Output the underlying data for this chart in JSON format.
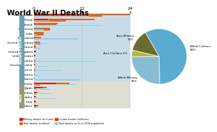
{
  "title": "World War II Deaths",
  "countries": [
    "Soviet Union",
    "China",
    "Poland",
    "Indonesia",
    "India",
    "Yugoslavia",
    "French Indochina",
    "France",
    "United Kingdom",
    "United States",
    "Lithuania",
    "Czechoslovakia",
    "Greece",
    "Burma",
    "Latvia",
    "Germany",
    "Japan",
    "Romania",
    "Hungary",
    "Italy",
    "Other"
  ],
  "allied_axis": [
    "Allied",
    "Allied",
    "Allied",
    "Allied",
    "Allied",
    "Allied",
    "Allied",
    "Allied",
    "Allied",
    "Allied",
    "Allied",
    "Allied",
    "Allied",
    "Allied",
    "Allied",
    "Axis",
    "Axis",
    "Axis",
    "Axis",
    "Axis",
    "Axis"
  ],
  "military_deaths": [
    8.7,
    3.5,
    0.24,
    0.0,
    0.09,
    0.3,
    0.0,
    0.21,
    0.38,
    0.42,
    0.03,
    0.25,
    0.02,
    0.02,
    0.03,
    5.5,
    2.1,
    0.3,
    0.3,
    0.3,
    0.5
  ],
  "total_deaths": [
    26.6,
    15.0,
    5.8,
    4.0,
    2.5,
    1.7,
    1.5,
    0.6,
    0.45,
    0.42,
    0.35,
    0.34,
    0.3,
    0.25,
    0.25,
    8.8,
    3.1,
    0.8,
    0.56,
    0.46,
    1.0
  ],
  "civilian_deaths": [
    17.0,
    8.0,
    5.5,
    4.0,
    2.4,
    1.4,
    1.5,
    0.35,
    0.07,
    0.0,
    0.32,
    0.09,
    0.28,
    0.23,
    0.22,
    1.5,
    0.5,
    0.5,
    0.26,
    0.15,
    0.5
  ],
  "pct_population": [
    13.7,
    3.86,
    16.7,
    2.5,
    0.7,
    10.9,
    3.5,
    1.5,
    0.9,
    0.32,
    15.4,
    3.7,
    7.0,
    1.5,
    11.5,
    10.8,
    4.0,
    4.5,
    5.6,
    1.0,
    1.0
  ],
  "pie_labels": [
    "Axis Military\n13%",
    "Axis Civilians 4%",
    "Allied Military\n25%",
    "Allied Civilians\n58%"
  ],
  "pie_values": [
    13,
    4,
    25,
    58
  ],
  "pie_colors": [
    "#6b6b2f",
    "#b5b840",
    "#87bcd4",
    "#5aabcf"
  ],
  "bar_color_military": "#cc2200",
  "bar_color_total": "#e8601a",
  "bar_color_civilian": "#e8601a",
  "bar_color_pct": "#90d0e8",
  "allied_bg": "#c8dce8",
  "axis_bg": "#deded4",
  "allied_label_bg": "#6ba0b8",
  "axis_label_bg": "#9a9a7a",
  "xlim": [
    0,
    24
  ],
  "xticks": [
    0,
    12,
    24
  ]
}
